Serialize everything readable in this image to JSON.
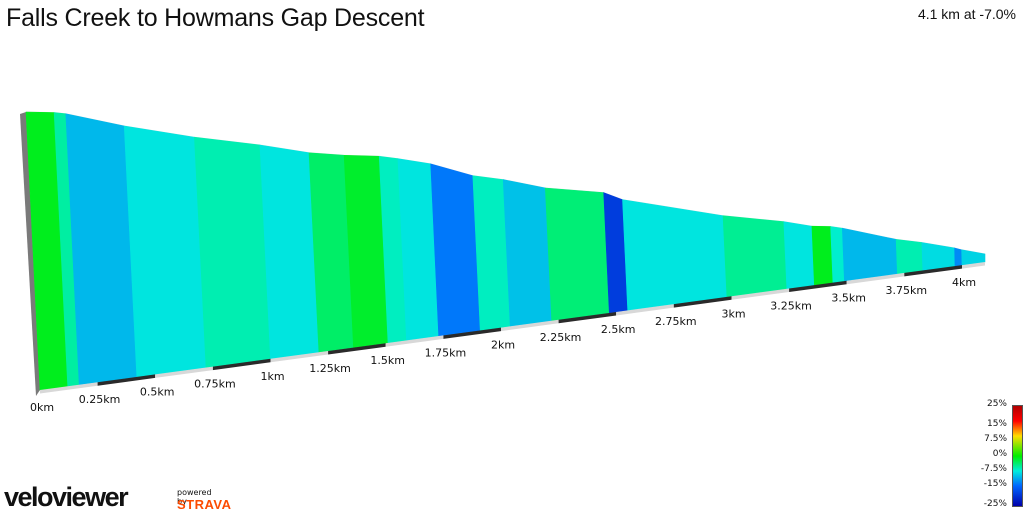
{
  "header": {
    "title": "Falls Creek to Howmans Gap Descent",
    "summary": "4.1 km at -7.0%"
  },
  "colors": {
    "gradient_scale": [
      "#b00000",
      "#ff0000",
      "#ffdd00",
      "#00ee00",
      "#00eedd",
      "#0066ff",
      "#0000aa"
    ],
    "axis_dark": "#2a2a2a",
    "axis_light": "#d8d8d8"
  },
  "chart_data": {
    "type": "area",
    "title": "Falls Creek to Howmans Gap Descent",
    "subtitle": "4.1 km at -7.0%",
    "xlabel": "",
    "ylabel": "",
    "x_unit": "km",
    "xlim": [
      0,
      4.1
    ],
    "x_ticks": [
      0,
      0.25,
      0.5,
      0.75,
      1,
      1.25,
      1.5,
      1.75,
      2,
      2.25,
      2.5,
      2.75,
      3,
      3.25,
      3.5,
      3.75,
      4
    ],
    "x_tick_labels": [
      "0km",
      "0.25km",
      "0.5km",
      "0.75km",
      "1km",
      "1.25km",
      "1.5km",
      "1.75km",
      "2km",
      "2.25km",
      "2.5km",
      "2.75km",
      "3km",
      "3.25km",
      "3.5km",
      "3.75km",
      "4km"
    ],
    "grid": false,
    "segments": [
      {
        "x_start": 0.0,
        "x_end": 0.12,
        "gradient": -1.0
      },
      {
        "x_start": 0.12,
        "x_end": 0.17,
        "gradient": -5.5
      },
      {
        "x_start": 0.17,
        "x_end": 0.42,
        "gradient": -10.5
      },
      {
        "x_start": 0.42,
        "x_end": 0.72,
        "gradient": -8.0
      },
      {
        "x_start": 0.72,
        "x_end": 1.0,
        "gradient": -6.0
      },
      {
        "x_start": 1.0,
        "x_end": 1.21,
        "gradient": -8.0
      },
      {
        "x_start": 1.21,
        "x_end": 1.36,
        "gradient": -3.5
      },
      {
        "x_start": 1.36,
        "x_end": 1.51,
        "gradient": -1.5
      },
      {
        "x_start": 1.51,
        "x_end": 1.59,
        "gradient": -6.5
      },
      {
        "x_start": 1.59,
        "x_end": 1.73,
        "gradient": -8.0
      },
      {
        "x_start": 1.73,
        "x_end": 1.91,
        "gradient": -14.0
      },
      {
        "x_start": 1.91,
        "x_end": 2.04,
        "gradient": -6.5
      },
      {
        "x_start": 2.04,
        "x_end": 2.22,
        "gradient": -10.0
      },
      {
        "x_start": 2.22,
        "x_end": 2.47,
        "gradient": -4.0
      },
      {
        "x_start": 2.47,
        "x_end": 2.55,
        "gradient": -19.0
      },
      {
        "x_start": 2.55,
        "x_end": 2.98,
        "gradient": -8.0
      },
      {
        "x_start": 2.98,
        "x_end": 3.24,
        "gradient": -5.0
      },
      {
        "x_start": 3.24,
        "x_end": 3.36,
        "gradient": -8.0
      },
      {
        "x_start": 3.36,
        "x_end": 3.44,
        "gradient": -1.0
      },
      {
        "x_start": 3.44,
        "x_end": 3.49,
        "gradient": -7.0
      },
      {
        "x_start": 3.49,
        "x_end": 3.72,
        "gradient": -10.5
      },
      {
        "x_start": 3.72,
        "x_end": 3.83,
        "gradient": -6.0
      },
      {
        "x_start": 3.83,
        "x_end": 3.97,
        "gradient": -8.5
      },
      {
        "x_start": 3.97,
        "x_end": 4.0,
        "gradient": -13.0
      },
      {
        "x_start": 4.0,
        "x_end": 4.1,
        "gradient": -9.0
      }
    ],
    "legend": {
      "placement": "bottom-right",
      "labels": [
        "25%",
        "15%",
        "7.5%",
        "0%",
        "-7.5%",
        "-15%",
        "-25%"
      ],
      "values": [
        25,
        15,
        7.5,
        0,
        -7.5,
        -15,
        -25
      ]
    }
  },
  "branding": {
    "logo_left": "velo",
    "logo_right": "viewer",
    "powered_by": "powered by",
    "partner": "STRAVA"
  }
}
